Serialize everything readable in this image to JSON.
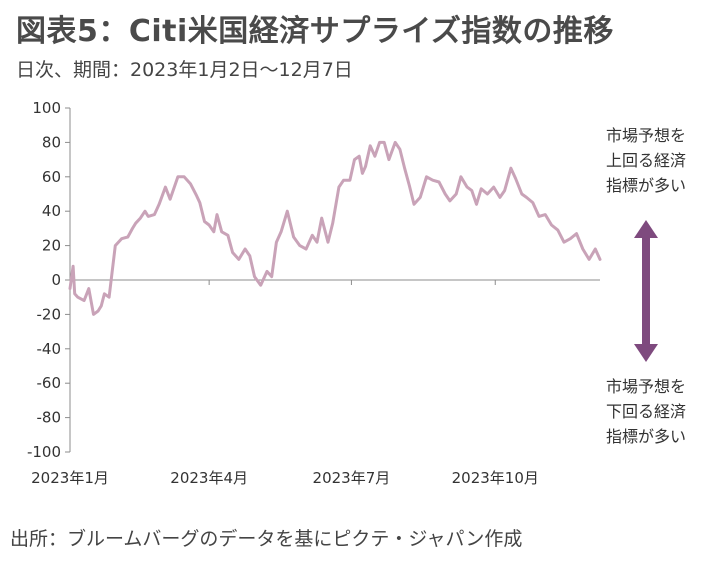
{
  "header": {
    "title": "図表5：Citi米国経済サプライズ指数の推移",
    "subtitle": "日次、期間：2023年1月2日〜12月7日"
  },
  "footer": {
    "source": "出所：ブルームバーグのデータを基にピクテ・ジャパン作成"
  },
  "annotations": {
    "upper": [
      "市場予想を",
      "上回る経済",
      "指標が多い"
    ],
    "lower": [
      "市場予想を",
      "下回る経済",
      "指標が多い"
    ]
  },
  "colors": {
    "line": "#c9a3b8",
    "arrow": "#7e4a7e",
    "axis": "#8c8c8c"
  },
  "chart_data": {
    "type": "line",
    "title": "図表5：Citi米国経済サプライズ指数の推移",
    "xlabel": "",
    "ylabel": "",
    "ylim": [
      -100,
      100
    ],
    "x_range": [
      "2023-01-02",
      "2023-12-07"
    ],
    "yticks": [
      100,
      80,
      60,
      40,
      20,
      0,
      -20,
      -40,
      -60,
      -80,
      -100
    ],
    "xticks": [
      {
        "date": "2023-01-02",
        "label": "2023年1月"
      },
      {
        "date": "2023-04-01",
        "label": "2023年4月"
      },
      {
        "date": "2023-07-01",
        "label": "2023年7月"
      },
      {
        "date": "2023-10-01",
        "label": "2023年10月"
      }
    ],
    "grid": false,
    "legend": "none",
    "series": [
      {
        "x": [
          "2023-01-02",
          "2023-01-04",
          "2023-01-05",
          "2023-01-07",
          "2023-01-11",
          "2023-01-14",
          "2023-01-17",
          "2023-01-20",
          "2023-01-22",
          "2023-01-24",
          "2023-01-27",
          "2023-01-31",
          "2023-02-04",
          "2023-02-08",
          "2023-02-11",
          "2023-02-13",
          "2023-02-16",
          "2023-02-19",
          "2023-02-21",
          "2023-02-25",
          "2023-02-28",
          "2023-03-04",
          "2023-03-07",
          "2023-03-12",
          "2023-03-16",
          "2023-03-20",
          "2023-03-24",
          "2023-03-26",
          "2023-03-29",
          "2023-04-01",
          "2023-04-04",
          "2023-04-06",
          "2023-04-09",
          "2023-04-13",
          "2023-04-16",
          "2023-04-20",
          "2023-04-24",
          "2023-04-27",
          "2023-04-30",
          "2023-05-04",
          "2023-05-08",
          "2023-05-11",
          "2023-05-14",
          "2023-05-17",
          "2023-05-21",
          "2023-05-25",
          "2023-05-29",
          "2023-06-02",
          "2023-06-06",
          "2023-06-09",
          "2023-06-12",
          "2023-06-16",
          "2023-06-19",
          "2023-06-23",
          "2023-06-26",
          "2023-06-30",
          "2023-07-03",
          "2023-07-06",
          "2023-07-08",
          "2023-07-10",
          "2023-07-13",
          "2023-07-16",
          "2023-07-19",
          "2023-07-22",
          "2023-07-25",
          "2023-07-29",
          "2023-08-01",
          "2023-08-04",
          "2023-08-07",
          "2023-08-10",
          "2023-08-14",
          "2023-08-18",
          "2023-08-22",
          "2023-08-26",
          "2023-08-30",
          "2023-09-02",
          "2023-09-06",
          "2023-09-09",
          "2023-09-13",
          "2023-09-16",
          "2023-09-19",
          "2023-09-22",
          "2023-09-26",
          "2023-09-30",
          "2023-10-04",
          "2023-10-07",
          "2023-10-11",
          "2023-10-14",
          "2023-10-18",
          "2023-10-21",
          "2023-10-25",
          "2023-10-29",
          "2023-11-02",
          "2023-11-06",
          "2023-11-10",
          "2023-11-14",
          "2023-11-18",
          "2023-11-22",
          "2023-11-26",
          "2023-11-30",
          "2023-12-04",
          "2023-12-07"
        ],
        "values": [
          -5,
          8,
          -8,
          -10,
          -12,
          -5,
          -20,
          -18,
          -15,
          -8,
          -10,
          20,
          24,
          25,
          30,
          33,
          36,
          40,
          37,
          38,
          44,
          54,
          47,
          60,
          60,
          56,
          49,
          45,
          34,
          32,
          28,
          38,
          28,
          26,
          16,
          12,
          18,
          14,
          2,
          -3,
          5,
          2,
          22,
          28,
          40,
          25,
          20,
          18,
          26,
          22,
          36,
          22,
          33,
          54,
          58,
          58,
          70,
          72,
          62,
          66,
          78,
          72,
          80,
          80,
          70,
          80,
          76,
          65,
          55,
          44,
          48,
          60,
          58,
          57,
          50,
          46,
          50,
          60,
          54,
          52,
          44,
          53,
          50,
          54,
          48,
          52,
          65,
          59,
          50,
          48,
          45,
          37,
          38,
          32,
          29,
          22,
          24,
          27,
          18,
          12,
          18,
          12
        ]
      }
    ]
  }
}
